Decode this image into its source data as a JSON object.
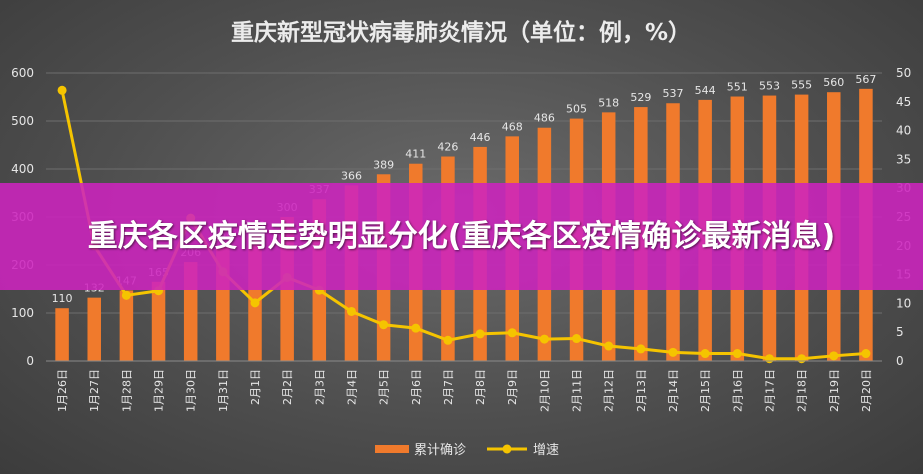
{
  "chart_data": {
    "type": "bar",
    "title": "重庆新型冠状病毒肺炎情况（单位：例，%）",
    "categories": [
      "1月26日",
      "1月27日",
      "1月28日",
      "1月29日",
      "1月30日",
      "1月31日",
      "2月1日",
      "2月2日",
      "2月3日",
      "2月4日",
      "2月5日",
      "2月6日",
      "2月7日",
      "2月8日",
      "2月9日",
      "2月10日",
      "2月11日",
      "2月12日",
      "2月13日",
      "2月14日",
      "2月15日",
      "2月16日",
      "2月17日",
      "2月18日",
      "2月19日",
      "2月20日"
    ],
    "series": [
      {
        "name": "累计确诊",
        "type": "bar",
        "axis": "left",
        "values": [
          110,
          132,
          147,
          165,
          206,
          238,
          262,
          300,
          337,
          366,
          389,
          411,
          426,
          446,
          468,
          486,
          505,
          518,
          529,
          537,
          544,
          551,
          553,
          555,
          560,
          567
        ],
        "data_labels": [
          "110",
          "132",
          "147",
          "165",
          "206",
          "238",
          "262",
          "300",
          "337",
          "366",
          "389",
          "411",
          "426",
          "446",
          "468",
          "486",
          "505",
          "518",
          "529",
          "537",
          "544",
          "551",
          "553",
          "555",
          "560",
          "567"
        ]
      },
      {
        "name": "增速",
        "type": "line",
        "axis": "right",
        "values": [
          47,
          20,
          11.4,
          12.2,
          24.8,
          15.5,
          10.1,
          14.5,
          12.3,
          8.6,
          6.3,
          5.7,
          3.6,
          4.7,
          4.9,
          3.8,
          3.9,
          2.6,
          2.1,
          1.5,
          1.3,
          1.3,
          0.4,
          0.4,
          0.9,
          1.3
        ]
      }
    ],
    "y_left": {
      "range": [
        0,
        600
      ],
      "ticks": [
        "0",
        "100",
        "200",
        "300",
        "400",
        "500",
        "600"
      ]
    },
    "y_right": {
      "range": [
        0,
        50
      ],
      "ticks": [
        "0",
        "5",
        "10",
        "15",
        "20",
        "25",
        "30",
        "35",
        "40",
        "45",
        "50"
      ]
    },
    "grid": true,
    "legend": "bottom",
    "colors": {
      "bar": "#f07a2c",
      "line": "#f5c400",
      "text": "#e6e6e6",
      "grid": "#6e6e6e"
    }
  },
  "banner": {
    "text": "重庆各区疫情走势明显分化(重庆各区疫情确诊最新消息)"
  }
}
